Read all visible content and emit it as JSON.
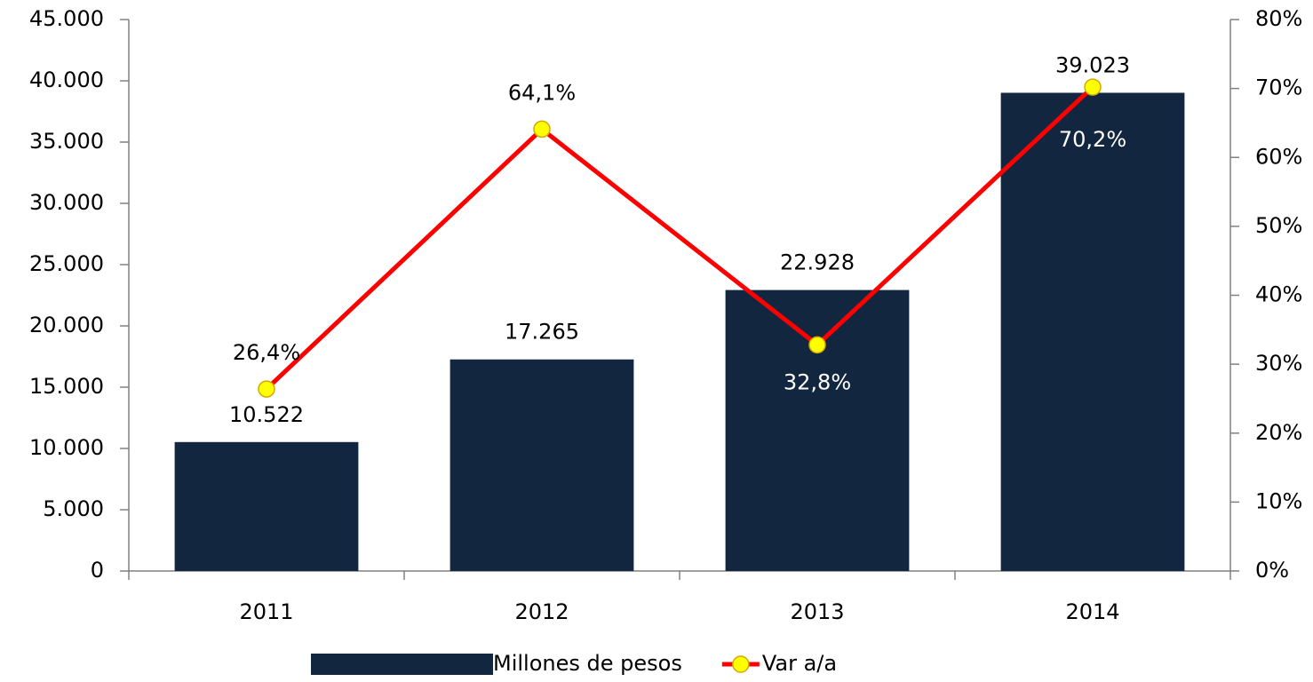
{
  "chart_data": {
    "type": "bar_line",
    "categories": [
      "2011",
      "2012",
      "2013",
      "2014"
    ],
    "series": [
      {
        "name": "Millones de pesos",
        "type": "bar",
        "color": "#13263f",
        "axis": "y",
        "values": [
          10522,
          17265,
          22928,
          39023
        ],
        "value_labels": [
          "10.522",
          "17.265",
          "22.928",
          "39.023"
        ]
      },
      {
        "name": "Var a/a",
        "type": "line",
        "color": "#ff0000",
        "marker_color": "#ffff00",
        "axis": "y2",
        "values": [
          26.4,
          64.1,
          32.8,
          70.2
        ],
        "value_labels": [
          "26,4%",
          "64,1%",
          "32,8%",
          "70,2%"
        ]
      }
    ],
    "ylim": [
      0,
      45000
    ],
    "yticks": [
      0,
      {
        "value": 5000,
        "label": "5.000"
      },
      {
        "value": 10000,
        "label": "10.000"
      },
      {
        "value": 15000,
        "label": "15.000"
      },
      {
        "value": 20000,
        "label": "20.000"
      },
      {
        "value": 25000,
        "label": "25.000"
      },
      {
        "value": 30000,
        "label": "30.000"
      },
      {
        "value": 35000,
        "label": "35.000"
      },
      {
        "value": 40000,
        "label": "40.000"
      },
      {
        "value": 45000,
        "label": "45.000"
      }
    ],
    "y2lim": [
      0,
      80
    ],
    "y2ticks": [
      {
        "value": 0,
        "label": "0%"
      },
      {
        "value": 10,
        "label": "10%"
      },
      {
        "value": 20,
        "label": "20%"
      },
      {
        "value": 30,
        "label": "30%"
      },
      {
        "value": 40,
        "label": "40%"
      },
      {
        "value": 50,
        "label": "50%"
      },
      {
        "value": 60,
        "label": "60%"
      },
      {
        "value": 70,
        "label": "70%"
      },
      {
        "value": 80,
        "label": "80%"
      }
    ],
    "grid": false,
    "legend": "bottom"
  }
}
